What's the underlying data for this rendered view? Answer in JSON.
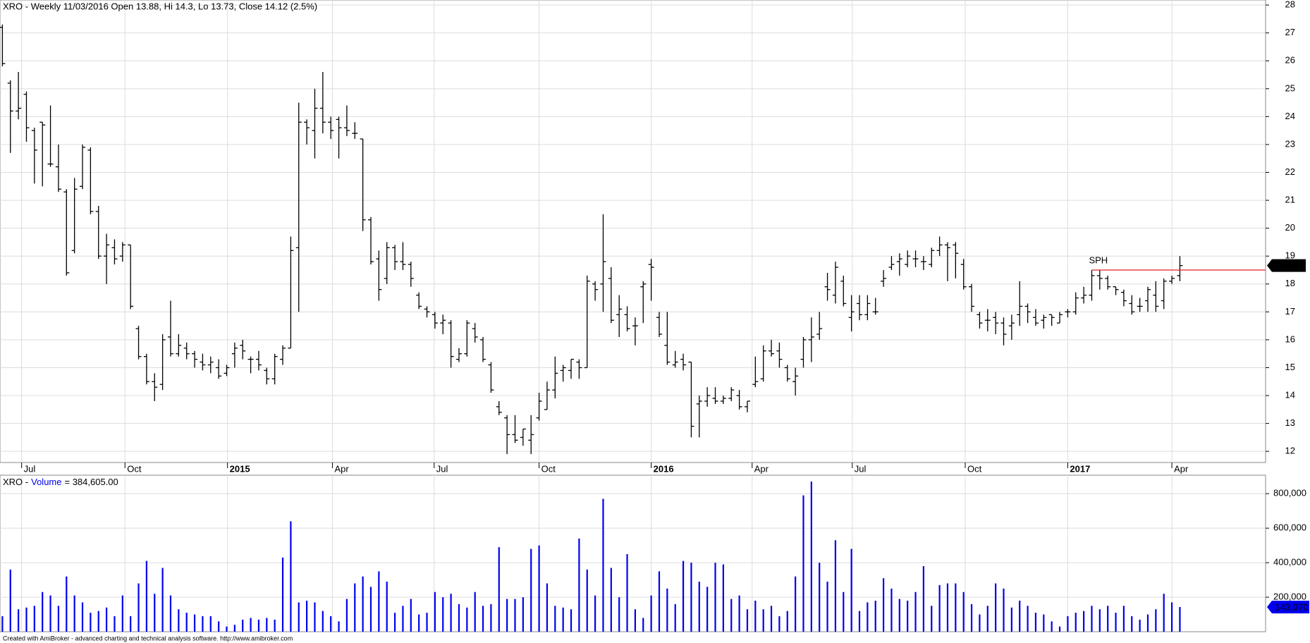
{
  "chart_data": {
    "type": "ohlc",
    "title": "XRO - Weekly 11/03/2016 Open 13.88, Hi 14.3, Lo 13.73, Close 14.12 (2.5%)",
    "volume_title": {
      "symbol": "XRO -",
      "name": "Volume",
      "value_text": "= 384,605.00"
    },
    "footer": "Created with AmiBroker - advanced charting and technical analysis software. http://www.amibroker.com",
    "xlim": [
      -0.3,
      157.7
    ],
    "xticks": [
      {
        "value": 2.4,
        "label": "Jul"
      },
      {
        "value": 15.3,
        "label": "Oct"
      },
      {
        "value": 28.1,
        "label": "2015"
      },
      {
        "value": 41.2,
        "label": "Apr"
      },
      {
        "value": 53.9,
        "label": "Jul"
      },
      {
        "value": 67,
        "label": "Oct"
      },
      {
        "value": 81,
        "label": "2016"
      },
      {
        "value": 93.6,
        "label": "Apr"
      },
      {
        "value": 106.1,
        "label": "Jul"
      },
      {
        "value": 120.2,
        "label": "Oct"
      },
      {
        "value": 133,
        "label": "2017"
      },
      {
        "value": 146,
        "label": "Apr"
      }
    ],
    "ylim": [
      11.6,
      28.18
    ],
    "yticks": [
      12,
      13,
      14,
      15,
      16,
      17,
      18,
      19,
      20,
      21,
      22,
      23,
      24,
      25,
      26,
      27,
      28
    ],
    "volume_ylim": [
      0,
      907000
    ],
    "volume_yticks": [
      {
        "value": 200000,
        "label": "200,000"
      },
      {
        "value": 400000,
        "label": "400,000"
      },
      {
        "value": 600000,
        "label": "600,000"
      },
      {
        "value": 800000,
        "label": "800,000"
      }
    ],
    "grid": true,
    "bar_color": "#000000",
    "volume_color": "#0000ee",
    "open": [
      27.2,
      25.2,
      24.2,
      24.8,
      23.5,
      23.8,
      22.3,
      22.2,
      21.3,
      19.2,
      21.5,
      22.8,
      20.6,
      19.0,
      19.3,
      19.0,
      19.4,
      16.4,
      15.4,
      14.5,
      14.4,
      16.1,
      15.5,
      15.7,
      15.5,
      15.2,
      15.1,
      15.0,
      14.8,
      15.5,
      15.8,
      15.3,
      15.3,
      14.9,
      14.6,
      15.3,
      15.7,
      19.3,
      23.8,
      23.5,
      24.3,
      23.8,
      23.9,
      23.6,
      23.4,
      23.2,
      20.3,
      18.9,
      18.2,
      19.3,
      18.8,
      18.7,
      17.6,
      17.1,
      16.9,
      16.6,
      16.6,
      15.3,
      15.5,
      16.4,
      16.0,
      15.1,
      13.6,
      13.2,
      12.6,
      12.5,
      12.4,
      13.2,
      13.5,
      14.2,
      14.9,
      14.9,
      15.2,
      15.0,
      18.0,
      18.0,
      18.2,
      16.9,
      16.9,
      16.5,
      17.9,
      18.7,
      16.8,
      15.8,
      15.1,
      15.3,
      15.2,
      13.7,
      13.8,
      13.9,
      13.8,
      13.9,
      14.0,
      13.6,
      14.4,
      14.6,
      15.6,
      15.6,
      15.0,
      14.5,
      15.3,
      16.0,
      16.2,
      17.9,
      17.6,
      18.1,
      16.8,
      17.3,
      16.9,
      17.0,
      18.1,
      18.6,
      18.8,
      18.7,
      18.9,
      18.8,
      18.7,
      19.2,
      19.4,
      19.4,
      18.7,
      17.9,
      16.9,
      16.7,
      16.8,
      16.6,
      16.5,
      16.9,
      17.2,
      16.8,
      16.7,
      16.9,
      16.6,
      17.0,
      17.0,
      17.5,
      17.6,
      18.3,
      18.2,
      17.9,
      17.7,
      17.3,
      17.2,
      17.4,
      17.6,
      17.4,
      18.1,
      18.3
    ],
    "high": [
      27.3,
      25.3,
      25.6,
      24.9,
      23.6,
      23.8,
      24.4,
      23.0,
      21.4,
      21.8,
      23.0,
      22.9,
      20.8,
      19.8,
      19.6,
      19.5,
      19.4,
      16.5,
      15.5,
      14.8,
      16.2,
      17.4,
      16.2,
      15.9,
      15.6,
      15.5,
      15.4,
      15.3,
      15.1,
      15.9,
      16.0,
      15.4,
      15.6,
      15.0,
      15.5,
      15.8,
      19.7,
      24.5,
      23.9,
      25.0,
      25.6,
      24.0,
      24.0,
      24.4,
      23.8,
      23.2,
      20.4,
      19.2,
      19.5,
      19.4,
      19.5,
      18.8,
      17.7,
      17.2,
      17.0,
      16.9,
      16.7,
      15.7,
      16.7,
      16.6,
      16.1,
      15.2,
      13.8,
      13.3,
      13.3,
      12.8,
      13.3,
      14.1,
      14.5,
      15.4,
      15.1,
      15.3,
      15.3,
      18.3,
      18.1,
      20.5,
      18.6,
      17.6,
      17.2,
      16.8,
      18.1,
      18.9,
      17.0,
      17.0,
      15.6,
      15.5,
      15.2,
      14.0,
      14.3,
      14.3,
      14.0,
      14.3,
      14.2,
      13.8,
      15.4,
      15.8,
      16.0,
      15.9,
      15.1,
      15.0,
      16.1,
      16.8,
      17.0,
      18.4,
      18.8,
      18.3,
      17.6,
      17.6,
      17.6,
      17.5,
      18.5,
      19.0,
      19.1,
      19.2,
      19.2,
      19.0,
      19.3,
      19.7,
      19.5,
      19.5,
      18.9,
      18.0,
      17.0,
      17.1,
      17.0,
      16.8,
      16.9,
      18.1,
      17.3,
      17.1,
      16.9,
      16.9,
      17.0,
      17.1,
      17.7,
      17.9,
      18.5,
      18.5,
      18.3,
      17.9,
      17.8,
      17.6,
      17.5,
      17.9,
      18.1,
      18.2,
      18.3,
      19.0
    ],
    "low": [
      25.8,
      22.7,
      23.9,
      23.1,
      21.6,
      21.5,
      22.2,
      21.3,
      18.3,
      19.1,
      21.4,
      20.5,
      18.9,
      18.0,
      18.7,
      18.8,
      17.1,
      15.3,
      14.4,
      13.8,
      14.2,
      15.4,
      15.4,
      15.3,
      15.0,
      14.9,
      14.8,
      14.6,
      14.7,
      15.0,
      15.3,
      14.8,
      14.9,
      14.4,
      14.4,
      15.1,
      15.7,
      17.0,
      23.0,
      22.5,
      23.4,
      23.2,
      22.5,
      23.3,
      23.2,
      19.9,
      18.7,
      17.4,
      18.0,
      18.5,
      18.5,
      17.9,
      17.1,
      16.8,
      16.4,
      16.2,
      15.0,
      15.2,
      15.4,
      15.9,
      15.2,
      14.1,
      13.3,
      11.9,
      12.3,
      12.2,
      11.9,
      13.1,
      13.5,
      13.9,
      14.5,
      14.6,
      14.6,
      15.0,
      17.4,
      17.0,
      16.6,
      16.1,
      16.3,
      15.8,
      16.6,
      17.4,
      16.1,
      15.1,
      15.0,
      14.9,
      12.5,
      12.5,
      13.6,
      13.7,
      13.7,
      13.8,
      13.5,
      13.4,
      14.3,
      14.5,
      15.4,
      15.0,
      14.5,
      14.0,
      15.0,
      15.2,
      16.0,
      17.4,
      17.3,
      17.2,
      16.3,
      16.7,
      16.7,
      16.9,
      17.9,
      18.5,
      18.3,
      18.6,
      18.6,
      18.5,
      18.6,
      19.0,
      18.1,
      18.2,
      17.8,
      17.0,
      16.4,
      16.3,
      16.2,
      15.8,
      16.0,
      16.5,
      16.6,
      16.5,
      16.4,
      16.5,
      16.6,
      16.8,
      16.9,
      17.3,
      17.4,
      17.8,
      17.8,
      17.6,
      17.2,
      16.9,
      17.0,
      17.0,
      17.0,
      17.1,
      18.0,
      18.1
    ],
    "close": [
      25.9,
      24.2,
      24.3,
      23.6,
      22.8,
      23.7,
      22.3,
      21.4,
      18.4,
      21.4,
      22.9,
      20.6,
      19.0,
      19.4,
      18.9,
      19.4,
      17.2,
      15.4,
      14.5,
      14.3,
      16.0,
      15.5,
      15.8,
      15.5,
      15.3,
      15.1,
      15.2,
      14.7,
      15.0,
      15.7,
      15.6,
      15.3,
      15.1,
      14.6,
      15.4,
      15.7,
      19.2,
      23.8,
      23.6,
      24.3,
      23.8,
      23.5,
      23.6,
      23.5,
      23.4,
      20.3,
      18.8,
      17.8,
      19.3,
      18.8,
      18.7,
      18.2,
      17.2,
      17.0,
      16.6,
      16.7,
      15.4,
      15.5,
      16.6,
      16.1,
      15.3,
      14.2,
      13.4,
      12.6,
      12.4,
      12.8,
      12.6,
      13.8,
      14.2,
      14.8,
      15.0,
      15.3,
      15.0,
      18.1,
      17.8,
      18.8,
      16.7,
      17.1,
      16.4,
      16.5,
      18.0,
      18.6,
      16.2,
      15.2,
      15.2,
      15.1,
      12.9,
      13.8,
      14.0,
      13.8,
      13.9,
      14.2,
      13.6,
      13.8,
      14.5,
      15.6,
      15.5,
      15.3,
      14.6,
      14.7,
      16.0,
      16.1,
      16.4,
      17.8,
      18.6,
      17.3,
      17.0,
      16.9,
      17.3,
      17.0,
      18.2,
      18.7,
      18.9,
      19.0,
      18.9,
      18.8,
      19.2,
      19.4,
      19.3,
      19.1,
      17.9,
      17.2,
      16.6,
      16.7,
      16.6,
      16.2,
      16.6,
      17.2,
      17.0,
      16.6,
      16.8,
      16.8,
      16.9,
      17.0,
      17.5,
      17.6,
      18.3,
      18.2,
      17.9,
      17.8,
      17.4,
      17.0,
      17.2,
      17.8,
      17.2,
      18.1,
      18.2,
      18.66
    ],
    "volume": [
      90000,
      360000,
      130000,
      140000,
      150000,
      230000,
      210000,
      150000,
      320000,
      210000,
      170000,
      110000,
      120000,
      140000,
      90000,
      210000,
      90000,
      280000,
      410000,
      220000,
      370000,
      210000,
      130000,
      110000,
      100000,
      90000,
      90000,
      60000,
      30000,
      40000,
      70000,
      80000,
      70000,
      80000,
      70000,
      430000,
      640000,
      170000,
      180000,
      170000,
      120000,
      90000,
      60000,
      190000,
      280000,
      320000,
      260000,
      350000,
      290000,
      110000,
      150000,
      190000,
      100000,
      110000,
      230000,
      200000,
      220000,
      160000,
      140000,
      230000,
      150000,
      160000,
      490000,
      190000,
      190000,
      200000,
      480000,
      500000,
      280000,
      150000,
      140000,
      130000,
      540000,
      360000,
      210000,
      770000,
      370000,
      200000,
      450000,
      130000,
      80000,
      210000,
      350000,
      250000,
      160000,
      410000,
      400000,
      290000,
      260000,
      400000,
      390000,
      190000,
      210000,
      130000,
      180000,
      130000,
      150000,
      90000,
      120000,
      320000,
      790000,
      870000,
      400000,
      290000,
      530000,
      230000,
      480000,
      120000,
      170000,
      180000,
      310000,
      250000,
      190000,
      180000,
      230000,
      380000,
      150000,
      270000,
      280000,
      280000,
      230000,
      160000,
      100000,
      150000,
      280000,
      250000,
      140000,
      180000,
      150000,
      110000,
      100000,
      60000,
      30000,
      90000,
      110000,
      120000,
      150000,
      130000,
      150000,
      110000,
      150000,
      90000,
      70000,
      100000,
      130000,
      220000,
      170000,
      143070
    ],
    "volume_marker": {
      "value": 143070,
      "label": "143,070"
    },
    "annotation": {
      "text": "SPH",
      "bar": 136,
      "level": 18.5,
      "color": "#2222dd",
      "line_color": "#e02020"
    }
  }
}
